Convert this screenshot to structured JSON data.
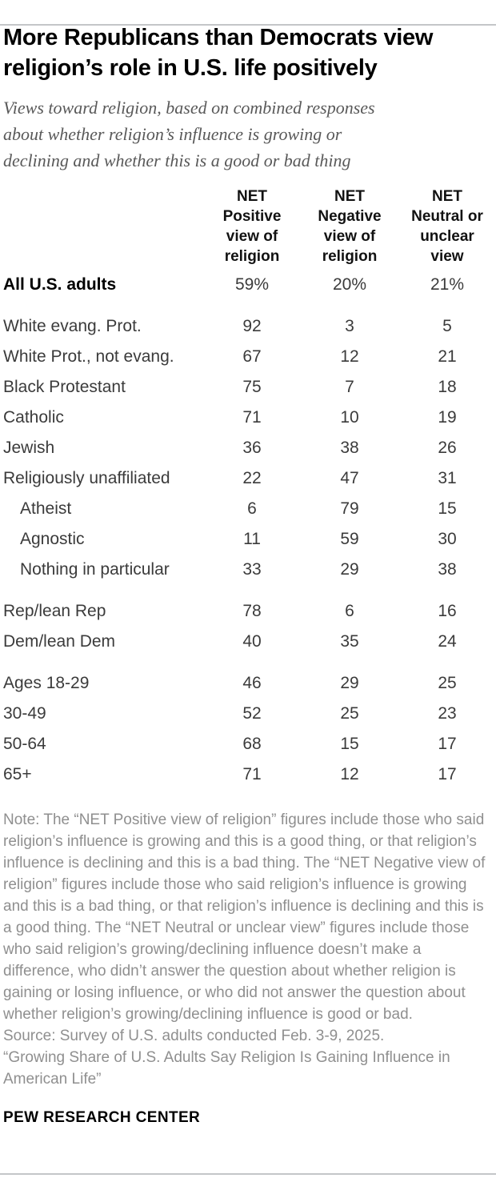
{
  "header": {
    "title": "More Republicans than Democrats view\nreligion’s role in U.S. life positively",
    "subtitle": "Views toward religion, based on combined responses\nabout whether religion’s influence is growing or\ndeclining and whether this is a good or bad thing"
  },
  "chart_data": {
    "type": "table",
    "title": "More Republicans than Democrats view religion’s role in U.S. life positively",
    "unit": "%",
    "columns": [
      "NET Positive view of religion",
      "NET Negative view of religion",
      "NET Neutral or unclear view"
    ],
    "column_header_lines": [
      "NET\nPositive\nview of\nreligion",
      "NET\nNegative\nview of\nreligion",
      "NET\nNeutral or\nunclear\nview"
    ],
    "groups": [
      {
        "rows": [
          {
            "label": "All U.S. adults",
            "bold": true,
            "indent": false,
            "values": [
              "59%",
              "20%",
              "21%"
            ]
          }
        ]
      },
      {
        "rows": [
          {
            "label": "White evang. Prot.",
            "bold": false,
            "indent": false,
            "values": [
              "92",
              "3",
              "5"
            ]
          },
          {
            "label": "White Prot., not evang.",
            "bold": false,
            "indent": false,
            "values": [
              "67",
              "12",
              "21"
            ]
          },
          {
            "label": "Black Protestant",
            "bold": false,
            "indent": false,
            "values": [
              "75",
              "7",
              "18"
            ]
          },
          {
            "label": "Catholic",
            "bold": false,
            "indent": false,
            "values": [
              "71",
              "10",
              "19"
            ]
          },
          {
            "label": "Jewish",
            "bold": false,
            "indent": false,
            "values": [
              "36",
              "38",
              "26"
            ]
          },
          {
            "label": "Religiously unaffiliated",
            "bold": false,
            "indent": false,
            "values": [
              "22",
              "47",
              "31"
            ]
          },
          {
            "label": "Atheist",
            "bold": false,
            "indent": true,
            "values": [
              "6",
              "79",
              "15"
            ]
          },
          {
            "label": "Agnostic",
            "bold": false,
            "indent": true,
            "values": [
              "11",
              "59",
              "30"
            ]
          },
          {
            "label": "Nothing in particular",
            "bold": false,
            "indent": true,
            "values": [
              "33",
              "29",
              "38"
            ]
          }
        ]
      },
      {
        "rows": [
          {
            "label": "Rep/lean Rep",
            "bold": false,
            "indent": false,
            "values": [
              "78",
              "6",
              "16"
            ]
          },
          {
            "label": "Dem/lean Dem",
            "bold": false,
            "indent": false,
            "values": [
              "40",
              "35",
              "24"
            ]
          }
        ]
      },
      {
        "rows": [
          {
            "label": "Ages 18-29",
            "bold": false,
            "indent": false,
            "values": [
              "46",
              "29",
              "25"
            ]
          },
          {
            "label": "30-49",
            "bold": false,
            "indent": false,
            "values": [
              "52",
              "25",
              "23"
            ]
          },
          {
            "label": "50-64",
            "bold": false,
            "indent": false,
            "values": [
              "68",
              "15",
              "17"
            ]
          },
          {
            "label": "65+",
            "bold": false,
            "indent": false,
            "values": [
              "71",
              "12",
              "17"
            ]
          }
        ]
      }
    ]
  },
  "footer": {
    "note": "Note: The “NET Positive view of religion” figures include those who said religion’s influence is growing and this is a good thing, or that religion’s influence is declining and this is a bad thing. The “NET Negative view of religion” figures include those who said religion’s influence is growing and this is a bad thing, or that religion’s influence is declining and this is a good thing. The “NET Neutral or unclear view” figures include those who said religion’s growing/declining influence doesn’t make a difference, who didn’t answer the question about whether religion is gaining or losing influence, or who did not answer the question about whether religion’s growing/declining influence is good or bad.",
    "source": "Source: Survey of U.S. adults conducted Feb. 3-9, 2025.",
    "quote": "“Growing Share of U.S. Adults Say Religion Is Gaining Influence in American Life”",
    "brand": "PEW RESEARCH CENTER"
  },
  "colors": {
    "title": "#000000",
    "subtitle": "#595959",
    "table_text": "#3b3b3b",
    "note": "#8f8f8f",
    "rule": "#c4c6c8"
  }
}
